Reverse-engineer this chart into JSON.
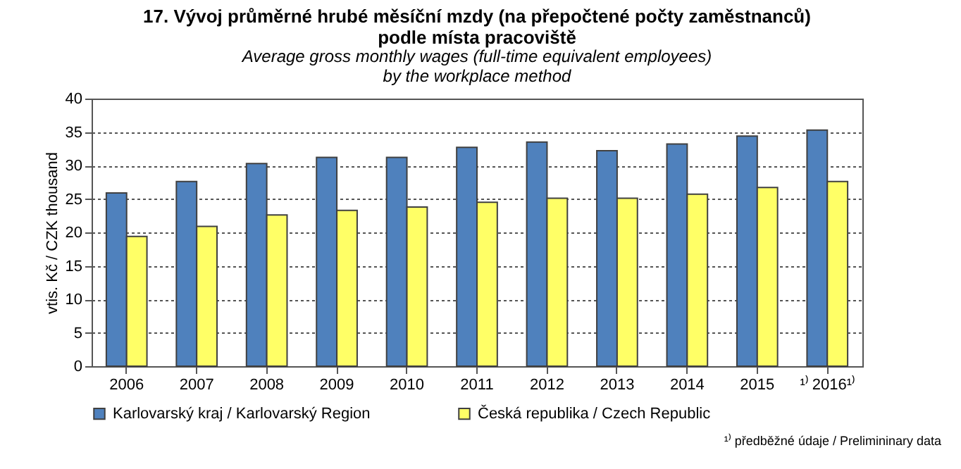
{
  "chart_data": {
    "type": "bar",
    "title": "17. Vývoj průměrné hrubé měsíční mzdy (na přepočtené  počty zaměstnanců)\npodle místa pracoviště",
    "subtitle": "Average gross monthly wages (full-time equivalent employees)\nby the workplace method",
    "ylabel": "vtis. Kč / CZK thousand",
    "categories": [
      "2006",
      "2007",
      "2008",
      "2009",
      "2010",
      "2011",
      "2012",
      "2013",
      "2014",
      "2015",
      "¹⁾ 2016¹⁾"
    ],
    "series": [
      {
        "name": "Karlovarský kraj / Karlovarský Region",
        "color": "#4f81bd",
        "values": [
          25.9,
          27.6,
          30.3,
          31.2,
          31.2,
          32.7,
          33.5,
          32.2,
          33.2,
          34.4,
          35.3
        ]
      },
      {
        "name": "Česká republika  / Czech Republic",
        "color": "#ffff66",
        "values": [
          19.4,
          20.9,
          22.6,
          23.3,
          23.8,
          24.5,
          25.1,
          25.1,
          25.7,
          26.7,
          27.6
        ]
      }
    ],
    "ylim": [
      0,
      40
    ],
    "yticks": [
      0,
      5,
      10,
      15,
      20,
      25,
      30,
      35,
      40
    ],
    "grid": "y",
    "legend": "bottom",
    "annotations": [
      "¹⁾ předběžné údaje / Prelimininary data"
    ]
  }
}
